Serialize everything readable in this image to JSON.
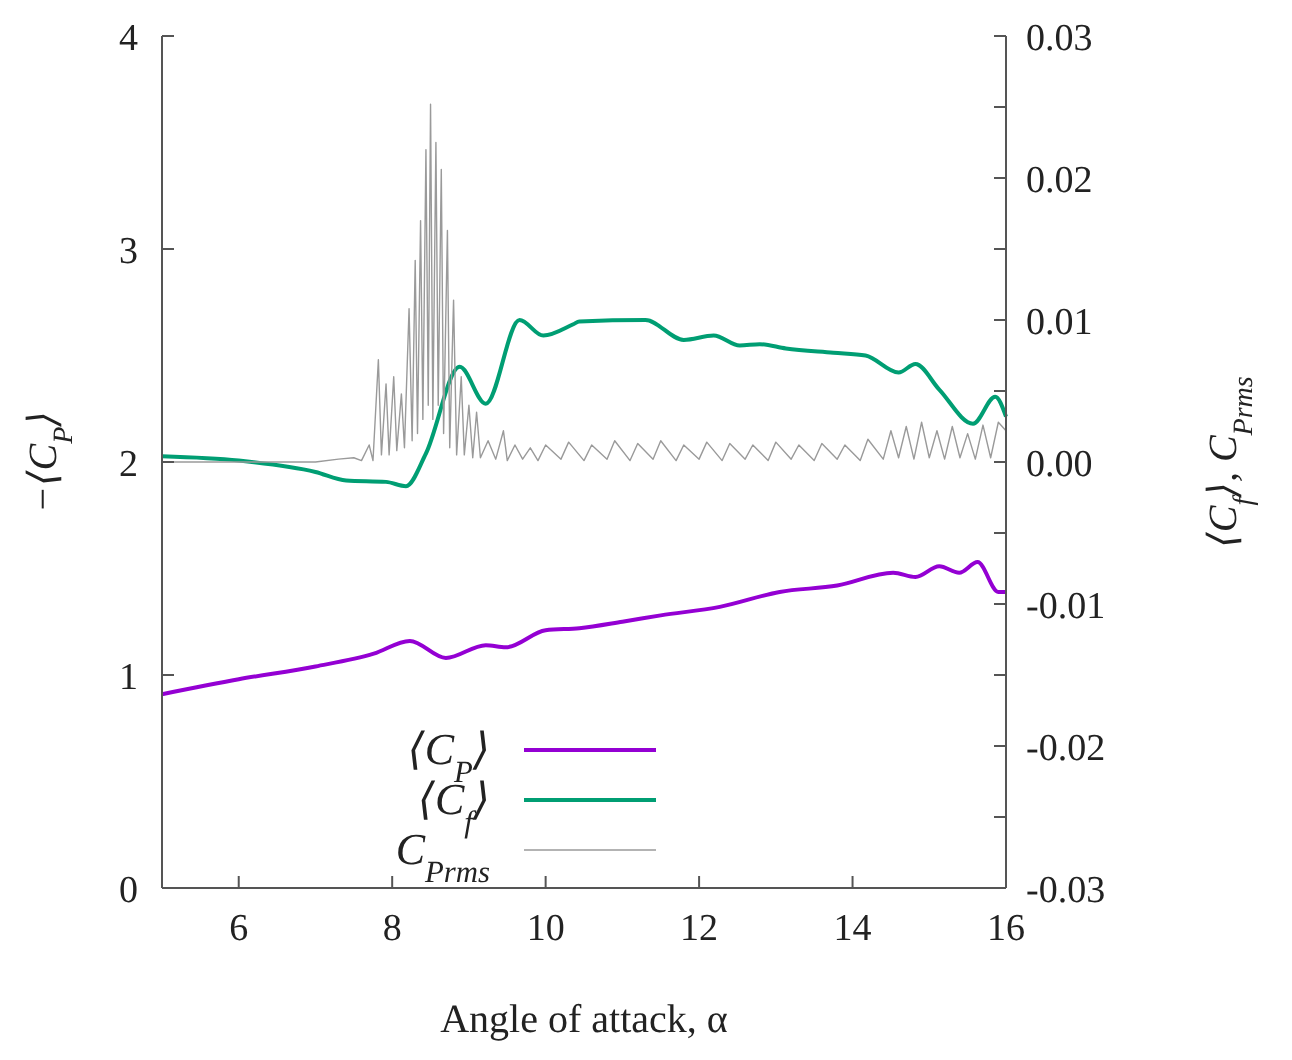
{
  "chart_data": {
    "type": "line",
    "xlabel": "Angle of attack, α",
    "ylabel": "−⟨C$_{P}$⟩",
    "y2label": "⟨C$_{f}$⟩, C$_{Prms}$",
    "xlim": [
      5,
      16
    ],
    "xticks": [
      6,
      8,
      10,
      12,
      14,
      16
    ],
    "ylim": [
      0,
      4
    ],
    "yticks": [
      0,
      1,
      2,
      3,
      4
    ],
    "y2lim": [
      -0.03,
      0.03
    ],
    "y2ticks": [
      {
        "value": -0.03,
        "label": "-0.03"
      },
      {
        "value": -0.025,
        "label": null
      },
      {
        "value": -0.02,
        "label": "-0.02"
      },
      {
        "value": -0.015,
        "label": null
      },
      {
        "value": -0.01,
        "label": "-0.01"
      },
      {
        "value": -0.005,
        "label": null
      },
      {
        "value": 0,
        "label": "0.00"
      },
      {
        "value": 0.005,
        "label": null
      },
      {
        "value": 0.01,
        "label": "0.01"
      },
      {
        "value": 0.015,
        "label": null
      },
      {
        "value": 0.02,
        "label": "0.02"
      },
      {
        "value": 0.025,
        "label": null
      },
      {
        "value": 0.03,
        "label": "0.03"
      }
    ],
    "legend": "bottom",
    "grid": false,
    "series": [
      {
        "name": "⟨C$_{P}$⟩",
        "color": "#9400d3",
        "x": [
          5,
          6,
          7,
          7.76,
          8.23,
          8.7,
          9.22,
          9.48,
          10,
          10.44,
          11,
          11.5,
          12.27,
          13.05,
          13.8,
          14.53,
          14.82,
          15.13,
          15.39,
          15.63,
          15.9,
          16
        ],
        "values": [
          0.91,
          0.98,
          1.04,
          1.1,
          1.16,
          1.08,
          1.14,
          1.13,
          1.21,
          1.22,
          1.25,
          1.28,
          1.32,
          1.39,
          1.42,
          1.48,
          1.46,
          1.51,
          1.48,
          1.53,
          1.39,
          1.39
        ]
      },
      {
        "name": "⟨C$_{f}$⟩",
        "color": "#009e73",
        "x": [
          5,
          6,
          7,
          7.4,
          7.92,
          8.18,
          8.44,
          8.88,
          9.22,
          9.66,
          9.97,
          10.36,
          10.44,
          11.3,
          11.8,
          12.19,
          12.53,
          12.79,
          13.13,
          13.75,
          14.17,
          14.6,
          14.82,
          15.13,
          15.57,
          15.86,
          16
        ],
        "axis": "y2",
        "values": [
          0.0004,
          0.0001,
          -0.0007,
          -0.0013,
          -0.0014,
          -0.0017,
          0.0006,
          0.0067,
          0.0041,
          0.01,
          0.0089,
          0.0097,
          0.0099,
          0.01,
          0.0086,
          0.0089,
          0.0082,
          0.0083,
          0.008,
          0.0077,
          0.0075,
          0.0063,
          0.0069,
          0.0051,
          0.0027,
          0.0046,
          0.0032
        ]
      },
      {
        "name": "C$_{Prms}$",
        "color": "#9a9a9a",
        "axis": "y2",
        "x": [
          5,
          7,
          7.3,
          7.5,
          7.6,
          7.7,
          7.75,
          7.82,
          7.86,
          7.92,
          7.96,
          8.02,
          8.06,
          8.12,
          8.16,
          8.22,
          8.26,
          8.3,
          8.33,
          8.37,
          8.4,
          8.44,
          8.47,
          8.5,
          8.53,
          8.57,
          8.6,
          8.64,
          8.67,
          8.72,
          8.75,
          8.8,
          8.84,
          8.9,
          8.94,
          9.0,
          9.05,
          9.1,
          9.15,
          9.25,
          9.35,
          9.45,
          9.5,
          9.6,
          9.7,
          9.8,
          9.9,
          10.0,
          10.2,
          10.3,
          10.5,
          10.6,
          10.8,
          10.9,
          11.1,
          11.2,
          11.4,
          11.5,
          11.7,
          11.8,
          12.0,
          12.1,
          12.3,
          12.4,
          12.6,
          12.7,
          12.9,
          13.0,
          13.2,
          13.3,
          13.5,
          13.6,
          13.8,
          13.9,
          14.1,
          14.2,
          14.4,
          14.5,
          14.6,
          14.7,
          14.8,
          14.9,
          15.0,
          15.1,
          15.2,
          15.3,
          15.4,
          15.5,
          15.6,
          15.7,
          15.8,
          15.9,
          16
        ],
        "values": [
          0,
          0,
          0.0002,
          0.0003,
          0.0001,
          0.0012,
          0.0001,
          0.0072,
          0.0005,
          0.0055,
          0.0005,
          0.006,
          0.0008,
          0.0048,
          0.001,
          0.0108,
          0.0015,
          0.0142,
          0.002,
          0.017,
          0.003,
          0.022,
          0.004,
          0.0252,
          0.003,
          0.0225,
          0.004,
          0.0206,
          0.002,
          0.0163,
          0.001,
          0.0114,
          0.0005,
          0.006,
          0.0005,
          0.004,
          0.0003,
          0.0035,
          0.0003,
          0.0015,
          0.0002,
          0.0022,
          0.0001,
          0.0012,
          0.0002,
          0.001,
          0.0001,
          0.0012,
          0.0002,
          0.0014,
          0.0001,
          0.0012,
          0.0002,
          0.0015,
          0.0001,
          0.0013,
          0.0002,
          0.0015,
          0.0001,
          0.0012,
          0.0002,
          0.0014,
          0.0001,
          0.0013,
          0.0002,
          0.0012,
          0.0001,
          0.0014,
          0.0002,
          0.0012,
          0.0001,
          0.0013,
          0.0002,
          0.0012,
          0.0001,
          0.0016,
          0.0002,
          0.0022,
          0.0003,
          0.0025,
          0.0002,
          0.0028,
          0.0003,
          0.0022,
          0.0002,
          0.0025,
          0.0003,
          0.002,
          0.0002,
          0.0026,
          0.0003,
          0.0028,
          0.0022
        ]
      }
    ]
  }
}
